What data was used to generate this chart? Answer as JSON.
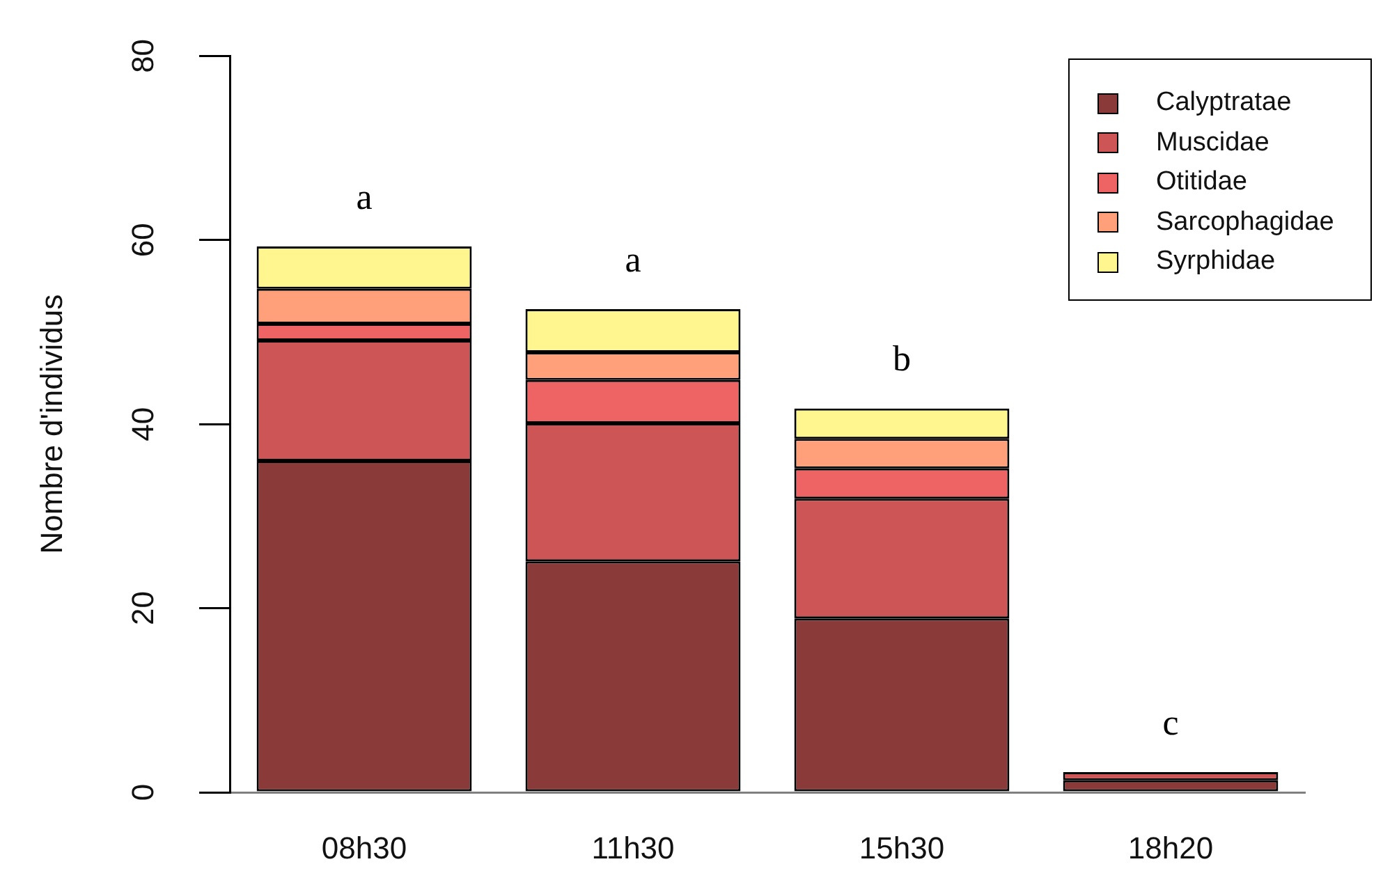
{
  "chart_data": {
    "type": "bar",
    "stacked": true,
    "ylabel": "Nombre d'individus",
    "categories": [
      "08h30",
      "11h30",
      "15h30",
      "18h20"
    ],
    "series": [
      {
        "name": "Calyptratae",
        "color": "#8b3a3a",
        "values": [
          36,
          25.1,
          18.9,
          1.3
        ]
      },
      {
        "name": "Muscidae",
        "color": "#cd5555",
        "values": [
          13.1,
          15,
          13,
          0.9
        ]
      },
      {
        "name": "Otitidae",
        "color": "#ee6363",
        "values": [
          1.8,
          4.7,
          3.3,
          0
        ]
      },
      {
        "name": "Sarcophagidae",
        "color": "#ffa07a",
        "values": [
          3.8,
          3,
          3.2,
          0
        ]
      },
      {
        "name": "Syrphidae",
        "color": "#fff68f",
        "values": [
          4.6,
          4.7,
          3.3,
          0
        ]
      }
    ],
    "ylim": [
      0,
      80
    ],
    "yticks": [
      0,
      20,
      40,
      60,
      80
    ],
    "annotations": [
      "a",
      "a",
      "b",
      "c"
    ],
    "legend": "top right"
  }
}
